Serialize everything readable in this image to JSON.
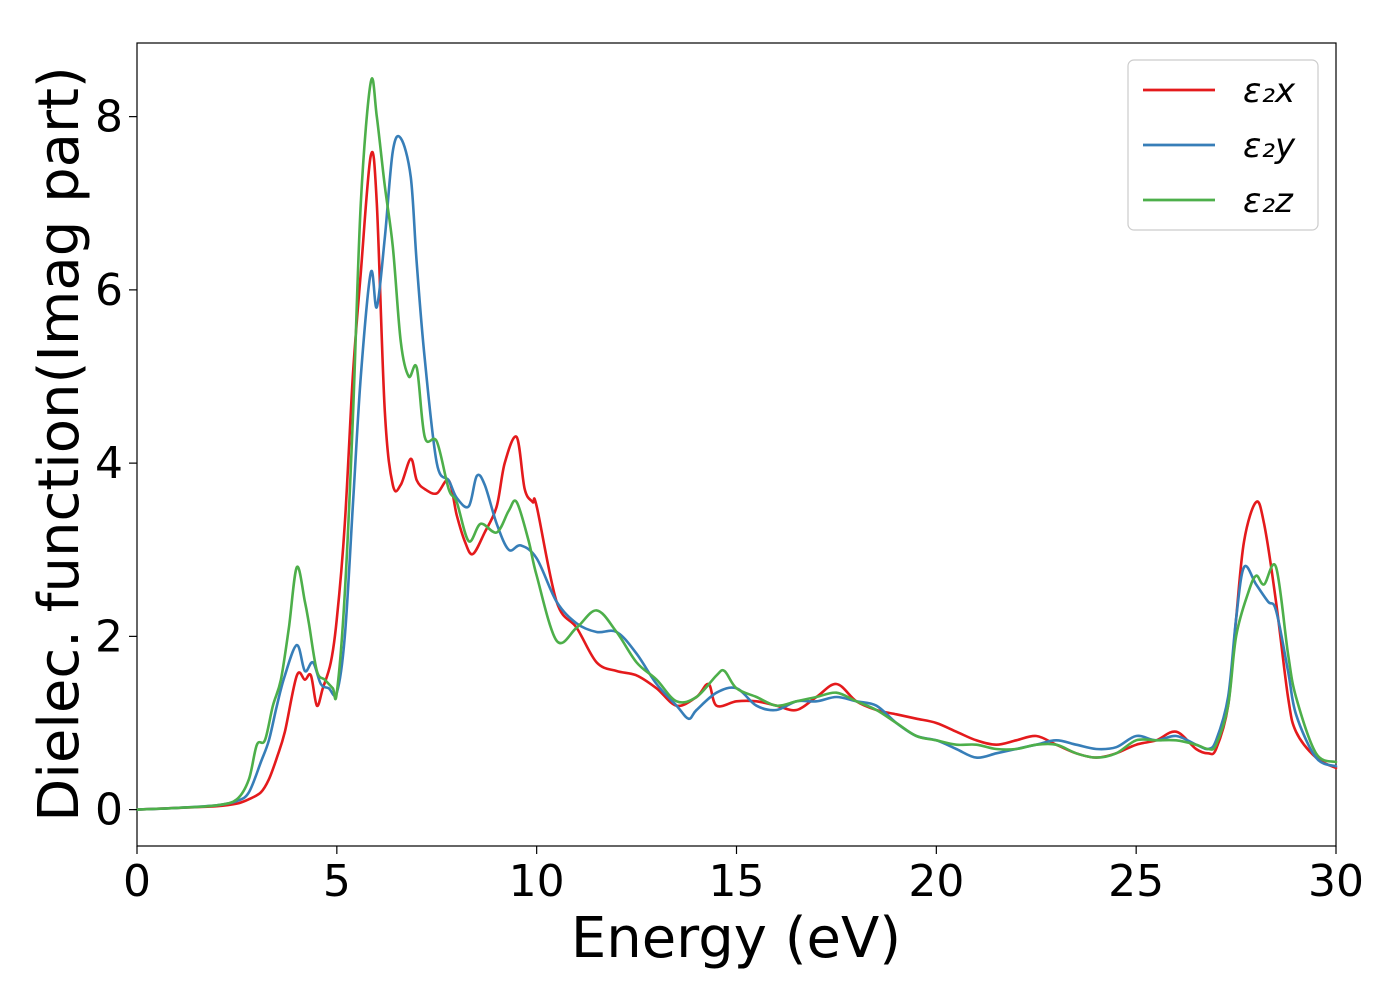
{
  "chart_data": {
    "type": "line",
    "xlabel": "Energy (eV)",
    "ylabel": "Dielec. function(Imag part)",
    "xlim": [
      0,
      30
    ],
    "ylim": [
      -0.42,
      8.85
    ],
    "xticks": [
      "0",
      "5",
      "10",
      "15",
      "20",
      "25",
      "30"
    ],
    "yticks": [
      "0",
      "2",
      "4",
      "6",
      "8"
    ],
    "grid": false,
    "legend_position": "top-right",
    "series": [
      {
        "name": "ε₂x",
        "color": "#e41a1c",
        "x": [
          0,
          1,
          2,
          2.5,
          2.8,
          3.1,
          3.3,
          3.5,
          3.7,
          4.0,
          4.2,
          4.35,
          4.5,
          4.65,
          4.85,
          5.0,
          5.2,
          5.4,
          5.6,
          5.85,
          6.0,
          6.2,
          6.4,
          6.6,
          6.85,
          7.0,
          7.2,
          7.5,
          7.8,
          8.0,
          8.2,
          8.4,
          8.7,
          9.0,
          9.2,
          9.5,
          9.7,
          9.9,
          10.0,
          10.5,
          11.0,
          11.5,
          12.0,
          12.5,
          13.0,
          13.5,
          14.0,
          14.3,
          14.5,
          15.0,
          15.5,
          16.0,
          16.5,
          17.0,
          17.5,
          18.0,
          18.5,
          19.0,
          19.5,
          20.0,
          20.5,
          21.0,
          21.5,
          22.0,
          22.5,
          23.0,
          23.5,
          24.0,
          24.5,
          25.0,
          25.5,
          26.0,
          26.5,
          26.8,
          27.0,
          27.3,
          27.5,
          27.7,
          28.0,
          28.2,
          28.5,
          28.8,
          29.0,
          29.5,
          30.0
        ],
        "y": [
          0,
          0.02,
          0.04,
          0.07,
          0.12,
          0.2,
          0.35,
          0.6,
          0.9,
          1.55,
          1.5,
          1.55,
          1.2,
          1.4,
          1.7,
          2.2,
          3.3,
          5.0,
          6.2,
          7.55,
          7.0,
          4.6,
          3.75,
          3.75,
          4.05,
          3.8,
          3.7,
          3.65,
          3.8,
          3.4,
          3.1,
          2.95,
          3.2,
          3.5,
          4.0,
          4.3,
          3.7,
          3.55,
          3.5,
          2.4,
          2.1,
          1.7,
          1.6,
          1.55,
          1.4,
          1.2,
          1.3,
          1.45,
          1.2,
          1.25,
          1.25,
          1.2,
          1.15,
          1.3,
          1.45,
          1.25,
          1.15,
          1.1,
          1.05,
          1.0,
          0.9,
          0.8,
          0.75,
          0.8,
          0.85,
          0.75,
          0.65,
          0.6,
          0.65,
          0.75,
          0.8,
          0.9,
          0.7,
          0.65,
          0.7,
          1.2,
          2.2,
          3.1,
          3.55,
          3.3,
          2.4,
          1.3,
          0.9,
          0.6,
          0.48
        ]
      },
      {
        "name": "ε₂y",
        "color": "#377eb8",
        "x": [
          0,
          1,
          2,
          2.5,
          2.8,
          3.1,
          3.3,
          3.5,
          3.7,
          4.0,
          4.2,
          4.4,
          4.6,
          4.8,
          5.0,
          5.2,
          5.4,
          5.6,
          5.85,
          6.0,
          6.2,
          6.4,
          6.6,
          6.85,
          7.0,
          7.2,
          7.5,
          7.8,
          8.0,
          8.3,
          8.5,
          8.7,
          9.0,
          9.3,
          9.6,
          10.0,
          10.5,
          11.0,
          11.5,
          12.0,
          12.5,
          13.0,
          13.5,
          13.8,
          14.0,
          14.5,
          15.0,
          15.5,
          16.0,
          16.5,
          17.0,
          17.5,
          18.0,
          18.5,
          19.0,
          19.5,
          20.0,
          20.5,
          21.0,
          21.5,
          22.0,
          22.5,
          23.0,
          23.5,
          24.0,
          24.5,
          25.0,
          25.5,
          26.0,
          26.5,
          26.8,
          27.0,
          27.3,
          27.5,
          27.7,
          28.0,
          28.3,
          28.5,
          28.8,
          29.0,
          29.5,
          30.0
        ],
        "y": [
          0,
          0.02,
          0.05,
          0.1,
          0.2,
          0.55,
          0.8,
          1.2,
          1.55,
          1.9,
          1.6,
          1.7,
          1.45,
          1.4,
          1.35,
          2.0,
          3.5,
          5.0,
          6.2,
          5.8,
          6.6,
          7.6,
          7.75,
          7.3,
          6.3,
          5.2,
          4.0,
          3.8,
          3.6,
          3.5,
          3.85,
          3.75,
          3.3,
          3.0,
          3.05,
          2.9,
          2.4,
          2.15,
          2.05,
          2.05,
          1.8,
          1.45,
          1.2,
          1.05,
          1.15,
          1.35,
          1.4,
          1.2,
          1.15,
          1.25,
          1.25,
          1.3,
          1.25,
          1.2,
          1.0,
          0.85,
          0.8,
          0.7,
          0.6,
          0.65,
          0.7,
          0.75,
          0.8,
          0.75,
          0.7,
          0.72,
          0.85,
          0.8,
          0.85,
          0.75,
          0.7,
          0.8,
          1.3,
          2.2,
          2.8,
          2.6,
          2.4,
          2.3,
          1.6,
          1.1,
          0.6,
          0.5
        ]
      },
      {
        "name": "ε₂z",
        "color": "#4daf4a",
        "x": [
          0,
          1,
          2,
          2.5,
          2.8,
          3.0,
          3.2,
          3.4,
          3.6,
          3.8,
          4.0,
          4.2,
          4.3,
          4.5,
          4.7,
          4.9,
          5.0,
          5.2,
          5.4,
          5.6,
          5.85,
          6.0,
          6.2,
          6.4,
          6.6,
          6.8,
          7.0,
          7.2,
          7.5,
          7.8,
          8.0,
          8.3,
          8.6,
          9.0,
          9.3,
          9.5,
          9.8,
          10.0,
          10.5,
          11.0,
          11.5,
          12.0,
          12.5,
          13.0,
          13.5,
          14.0,
          14.5,
          14.7,
          15.0,
          15.5,
          16.0,
          16.5,
          17.0,
          17.5,
          18.0,
          18.5,
          19.0,
          19.5,
          20.0,
          20.5,
          21.0,
          21.5,
          22.0,
          22.5,
          23.0,
          23.5,
          24.0,
          24.5,
          25.0,
          25.5,
          26.0,
          26.5,
          26.8,
          27.0,
          27.3,
          27.5,
          27.8,
          28.0,
          28.2,
          28.5,
          28.8,
          29.0,
          29.5,
          30.0
        ],
        "y": [
          0,
          0.02,
          0.05,
          0.12,
          0.35,
          0.75,
          0.8,
          1.2,
          1.5,
          2.1,
          2.8,
          2.4,
          2.15,
          1.6,
          1.5,
          1.4,
          1.35,
          2.5,
          4.5,
          7.0,
          8.4,
          8.0,
          7.2,
          6.5,
          5.4,
          5.0,
          5.1,
          4.3,
          4.25,
          3.7,
          3.55,
          3.1,
          3.3,
          3.2,
          3.45,
          3.55,
          3.1,
          2.7,
          1.95,
          2.1,
          2.3,
          2.05,
          1.7,
          1.5,
          1.25,
          1.3,
          1.55,
          1.6,
          1.4,
          1.3,
          1.2,
          1.25,
          1.3,
          1.35,
          1.25,
          1.15,
          1.0,
          0.85,
          0.8,
          0.75,
          0.75,
          0.7,
          0.7,
          0.75,
          0.75,
          0.65,
          0.6,
          0.65,
          0.8,
          0.8,
          0.8,
          0.75,
          0.7,
          0.75,
          1.2,
          2.0,
          2.5,
          2.7,
          2.6,
          2.8,
          1.8,
          1.3,
          0.65,
          0.55
        ]
      }
    ]
  }
}
